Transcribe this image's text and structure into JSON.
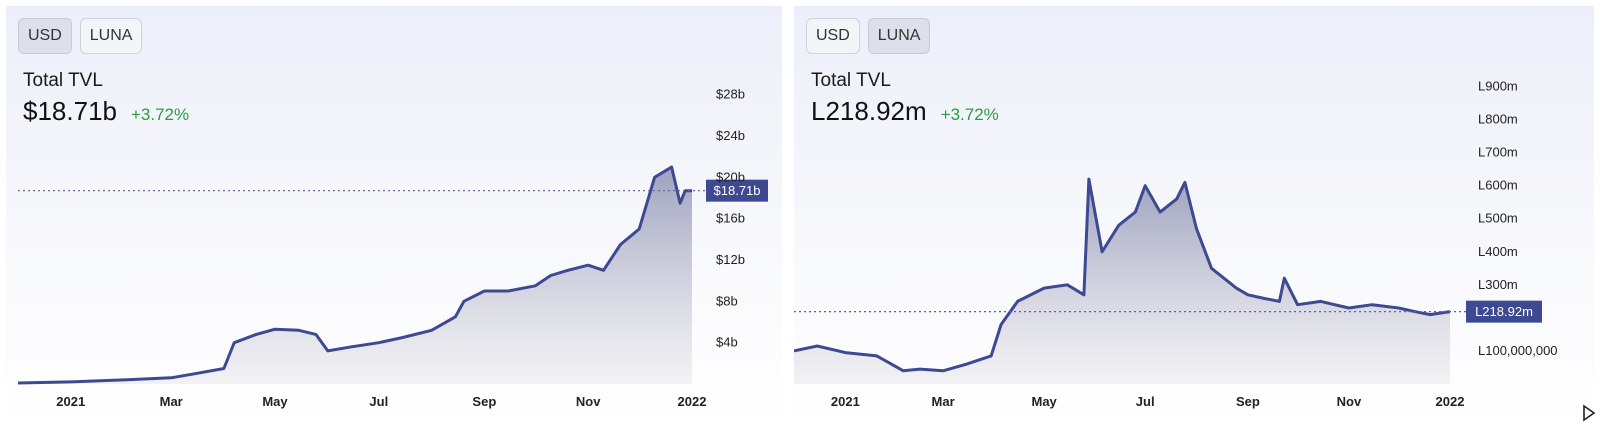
{
  "left_panel": {
    "toggle": {
      "usd_label": "USD",
      "luna_label": "LUNA",
      "active": "USD"
    },
    "tvl_label": "Total TVL",
    "tvl_value": "$18.71b",
    "tvl_change": "+3.72%"
  },
  "right_panel": {
    "toggle": {
      "usd_label": "USD",
      "luna_label": "LUNA",
      "active": "LUNA"
    },
    "tvl_label": "Total TVL",
    "tvl_value": "L218.92m",
    "tvl_change": "+3.72%"
  },
  "colors": {
    "line": "#3d4a92",
    "badge": "#3d4a92",
    "positive": "#2e9b43"
  },
  "icons": {
    "bottom_right": "play-icon"
  },
  "chart_data": [
    {
      "type": "area",
      "currency": "USD",
      "x": [
        "2020-12-01",
        "2021-01-01",
        "2021-02-01",
        "2021-03-01",
        "2021-03-15",
        "2021-04-01",
        "2021-04-07",
        "2021-04-20",
        "2021-05-01",
        "2021-05-15",
        "2021-05-25",
        "2021-06-01",
        "2021-06-15",
        "2021-07-01",
        "2021-07-15",
        "2021-08-01",
        "2021-08-15",
        "2021-08-20",
        "2021-09-01",
        "2021-09-15",
        "2021-10-01",
        "2021-10-10",
        "2021-10-20",
        "2021-11-01",
        "2021-11-10",
        "2021-11-20",
        "2021-12-01",
        "2021-12-10",
        "2021-12-20",
        "2021-12-25",
        "2021-12-28",
        "2022-01-01"
      ],
      "y": [
        0.1,
        0.2,
        0.4,
        0.6,
        1.0,
        1.5,
        4.0,
        4.8,
        5.3,
        5.2,
        4.8,
        3.2,
        3.6,
        4.0,
        4.5,
        5.2,
        6.5,
        8.0,
        9.0,
        9.0,
        9.5,
        10.5,
        11.0,
        11.5,
        11.0,
        13.5,
        15.0,
        20.0,
        21.0,
        17.5,
        18.71,
        18.71
      ],
      "ylim": [
        0,
        30
      ],
      "yticks": [
        4,
        8,
        12,
        16,
        20,
        24,
        28
      ],
      "ytick_labels": [
        "$4b",
        "$8b",
        "$12b",
        "$16b",
        "$20b",
        "$24b",
        "$28b"
      ],
      "xticks": [
        "2021-01-01",
        "2021-03-01",
        "2021-05-01",
        "2021-07-01",
        "2021-09-01",
        "2021-11-01",
        "2022-01-01"
      ],
      "xtick_labels": [
        "2021",
        "Mar",
        "May",
        "Jul",
        "Sep",
        "Nov",
        "2022"
      ],
      "current_value": 18.71,
      "current_label": "$18.71b",
      "grid": false
    },
    {
      "type": "area",
      "currency": "LUNA",
      "x": [
        "2020-12-01",
        "2020-12-15",
        "2021-01-01",
        "2021-01-20",
        "2021-02-05",
        "2021-02-15",
        "2021-03-01",
        "2021-03-15",
        "2021-03-30",
        "2021-04-05",
        "2021-04-15",
        "2021-05-01",
        "2021-05-15",
        "2021-05-25",
        "2021-05-28",
        "2021-06-05",
        "2021-06-15",
        "2021-06-25",
        "2021-07-01",
        "2021-07-10",
        "2021-07-20",
        "2021-07-25",
        "2021-08-01",
        "2021-08-10",
        "2021-08-25",
        "2021-09-01",
        "2021-09-10",
        "2021-09-20",
        "2021-09-23",
        "2021-10-01",
        "2021-10-15",
        "2021-11-01",
        "2021-11-15",
        "2021-12-01",
        "2021-12-10",
        "2021-12-20",
        "2022-01-01"
      ],
      "y": [
        100,
        115,
        95,
        85,
        40,
        45,
        40,
        60,
        85,
        180,
        250,
        290,
        300,
        270,
        620,
        400,
        480,
        520,
        600,
        520,
        560,
        610,
        470,
        350,
        290,
        270,
        260,
        250,
        320,
        240,
        250,
        230,
        240,
        230,
        220,
        210,
        218.92
      ],
      "ylim": [
        0,
        950
      ],
      "yticks": [
        100,
        200,
        300,
        400,
        500,
        600,
        700,
        800,
        900
      ],
      "ytick_labels": [
        "L100,000,000",
        "",
        "L300m",
        "L400m",
        "L500m",
        "L600m",
        "L700m",
        "L800m",
        "L900m"
      ],
      "xticks": [
        "2021-01-01",
        "2021-03-01",
        "2021-05-01",
        "2021-07-01",
        "2021-09-01",
        "2021-11-01",
        "2022-01-01"
      ],
      "xtick_labels": [
        "2021",
        "Mar",
        "May",
        "Jul",
        "Sep",
        "Nov",
        "2022"
      ],
      "current_value": 218.92,
      "current_label": "L218.92m",
      "grid": false
    }
  ]
}
